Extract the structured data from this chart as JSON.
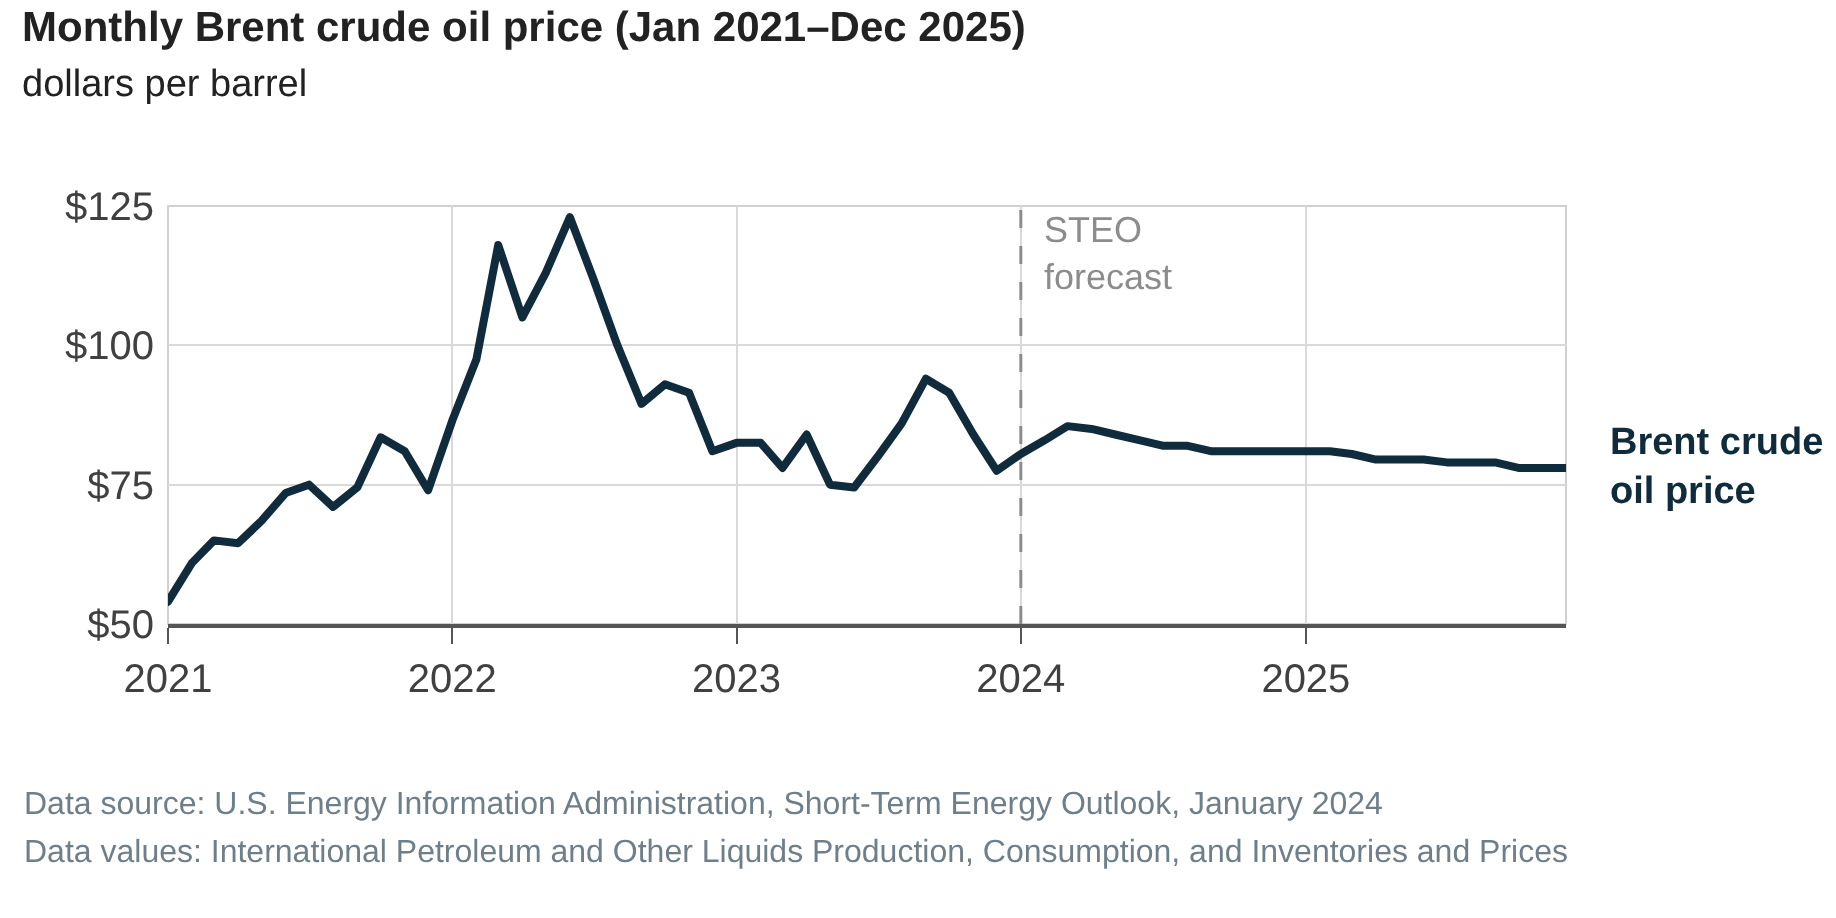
{
  "chart_data": {
    "type": "line",
    "title": "Monthly Brent crude oil price (Jan 2021–Dec 2025)",
    "subtitle": "dollars per barrel",
    "x": [
      "2021-01",
      "2021-02",
      "2021-03",
      "2021-04",
      "2021-05",
      "2021-06",
      "2021-07",
      "2021-08",
      "2021-09",
      "2021-10",
      "2021-11",
      "2021-12",
      "2022-01",
      "2022-02",
      "2022-03",
      "2022-04",
      "2022-05",
      "2022-06",
      "2022-07",
      "2022-08",
      "2022-09",
      "2022-10",
      "2022-11",
      "2022-12",
      "2023-01",
      "2023-02",
      "2023-03",
      "2023-04",
      "2023-05",
      "2023-06",
      "2023-07",
      "2023-08",
      "2023-09",
      "2023-10",
      "2023-11",
      "2023-12",
      "2024-01",
      "2024-02",
      "2024-03",
      "2024-04",
      "2024-05",
      "2024-06",
      "2024-07",
      "2024-08",
      "2024-09",
      "2024-10",
      "2024-11",
      "2024-12",
      "2025-01",
      "2025-02",
      "2025-03",
      "2025-04",
      "2025-05",
      "2025-06",
      "2025-07",
      "2025-08",
      "2025-09",
      "2025-10",
      "2025-11",
      "2025-12"
    ],
    "series": [
      {
        "name": "Brent crude oil price",
        "color": "#0f2b3c",
        "values": [
          54,
          61,
          65,
          64.5,
          68.5,
          73.5,
          75,
          71,
          74.5,
          83.5,
          81,
          74,
          86.5,
          97.5,
          118,
          105,
          113,
          123,
          112,
          100,
          89.5,
          93,
          91.5,
          81,
          82.5,
          82.5,
          78,
          84,
          75,
          74.5,
          80,
          86,
          94,
          91.5,
          84,
          77.5,
          80.5,
          83,
          85.5,
          85,
          84,
          83,
          82,
          82,
          81,
          81,
          81,
          81,
          81,
          81,
          80.5,
          79.5,
          79.5,
          79.5,
          79,
          79,
          79,
          78,
          78,
          78
        ]
      }
    ],
    "xlim": [
      "2021-01",
      "2025-12"
    ],
    "xticks": [
      "2021",
      "2022",
      "2023",
      "2024",
      "2025"
    ],
    "ylim": [
      50,
      125
    ],
    "yticks": [
      {
        "value": 50,
        "label": "$50"
      },
      {
        "value": 75,
        "label": "$75"
      },
      {
        "value": 100,
        "label": "$100"
      },
      {
        "value": 125,
        "label": "$125"
      }
    ],
    "grid": true,
    "legend": false,
    "marker": "none",
    "line_style": "solid",
    "ref_lines": [
      {
        "axis": "x",
        "value": "2024-01",
        "label": "STEO\nforecast",
        "color": "#8c8c8c",
        "line_style": "dashed"
      }
    ],
    "annotations": [
      "Data source: U.S. Energy Information Administration, Short-Term Energy Outlook, January 2024",
      "Data values: International Petroleum and Other Liquids Production, Consumption, and Inventories and Prices"
    ]
  }
}
